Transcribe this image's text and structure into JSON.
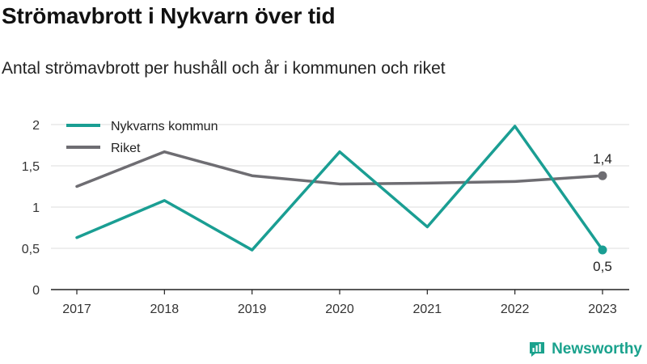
{
  "title": "Strömavbrott i Nykvarn över tid",
  "subtitle": "Antal strömavbrott per hushåll och år i kommunen och riket",
  "brand": "Newsworthy",
  "chart_data": {
    "type": "line",
    "x": [
      "2017",
      "2018",
      "2019",
      "2020",
      "2021",
      "2022",
      "2023"
    ],
    "y_ticks": [
      "0",
      "0,5",
      "1",
      "1,5",
      "2"
    ],
    "ylim": [
      0,
      2
    ],
    "grid": true,
    "legend_position": "top-left",
    "series": [
      {
        "name": "Nykvarns kommun",
        "color": "#1a9e93",
        "values": [
          0.63,
          1.08,
          0.48,
          1.67,
          0.76,
          1.98,
          0.48
        ],
        "end_label": "0,5"
      },
      {
        "name": "Riket",
        "color": "#6e6d72",
        "values": [
          1.25,
          1.67,
          1.38,
          1.28,
          1.29,
          1.31,
          1.38
        ],
        "end_label": "1,4"
      }
    ]
  }
}
